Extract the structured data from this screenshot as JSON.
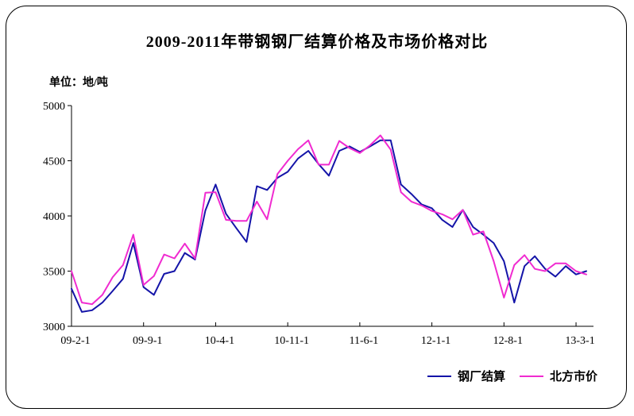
{
  "chart_data": {
    "type": "line",
    "title": "2009-2011年带钢钢厂结算价格及市场价格对比",
    "unit_label": "单位：地/吨",
    "ylim": [
      3000,
      5000
    ],
    "y_ticks": [
      3000,
      3500,
      4000,
      4500,
      5000
    ],
    "x_tick_labels": [
      "09-2-1",
      "09-9-1",
      "10-4-1",
      "10-11-1",
      "11-6-1",
      "12-1-1",
      "12-8-1",
      "13-3-1"
    ],
    "x_tick_every": 7,
    "grid": false,
    "legend_position": "bottom-right",
    "x_months": [
      "09-02",
      "09-03",
      "09-04",
      "09-05",
      "09-06",
      "09-07",
      "09-08",
      "09-09",
      "09-10",
      "09-11",
      "09-12",
      "10-01",
      "10-02",
      "10-03",
      "10-04",
      "10-05",
      "10-06",
      "10-07",
      "10-08",
      "10-09",
      "10-10",
      "10-11",
      "10-12",
      "11-01",
      "11-02",
      "11-03",
      "11-04",
      "11-05",
      "11-06",
      "11-07",
      "11-08",
      "11-09",
      "11-10",
      "11-11",
      "11-12",
      "12-01",
      "12-02",
      "12-03",
      "12-04",
      "12-05",
      "12-06",
      "12-07",
      "12-08",
      "12-09",
      "12-10",
      "12-11",
      "12-12",
      "13-01",
      "13-02",
      "13-03",
      "13-04"
    ],
    "series": [
      {
        "name": "钢厂结算",
        "color": "#1414A8",
        "values": [
          3340,
          3130,
          3145,
          3215,
          3320,
          3430,
          3755,
          3355,
          3285,
          3475,
          3500,
          3665,
          3605,
          4050,
          4285,
          4020,
          3890,
          3765,
          4270,
          4235,
          4345,
          4400,
          4520,
          4590,
          4470,
          4365,
          4590,
          4630,
          4580,
          4630,
          4685,
          4685,
          4285,
          4200,
          4105,
          4070,
          3965,
          3900,
          4055,
          3900,
          3830,
          3755,
          3590,
          3215,
          3545,
          3635,
          3520,
          3450,
          3545,
          3470,
          3500
        ]
      },
      {
        "name": "北方市价",
        "color": "#F02BD0",
        "values": [
          3500,
          3215,
          3200,
          3285,
          3445,
          3555,
          3830,
          3375,
          3455,
          3650,
          3615,
          3750,
          3615,
          4210,
          4215,
          3965,
          3955,
          3955,
          4130,
          3970,
          4380,
          4500,
          4605,
          4685,
          4465,
          4465,
          4680,
          4615,
          4570,
          4640,
          4730,
          4600,
          4215,
          4130,
          4095,
          4045,
          4015,
          3970,
          4055,
          3830,
          3860,
          3590,
          3260,
          3555,
          3645,
          3520,
          3500,
          3570,
          3570,
          3500,
          3470
        ]
      }
    ]
  }
}
